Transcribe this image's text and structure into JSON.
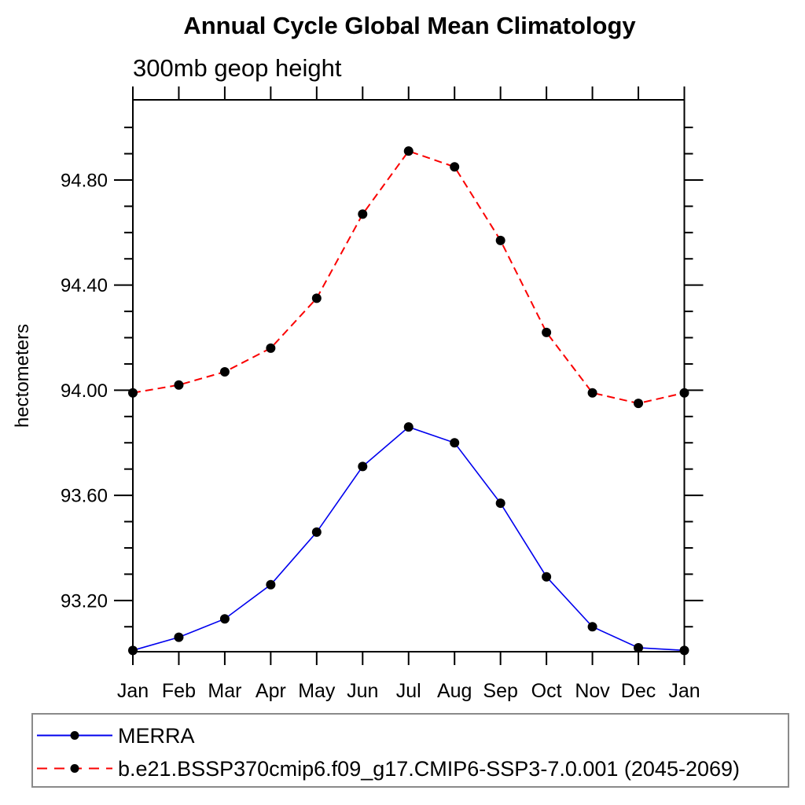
{
  "page": {
    "background": "#ffffff"
  },
  "chart_data": {
    "type": "line",
    "title": "Annual Cycle Global Mean Climatology",
    "subtitle": "300mb geop height",
    "ylabel": "hectometers",
    "categories": [
      "Jan",
      "Feb",
      "Mar",
      "Apr",
      "May",
      "Jun",
      "Jul",
      "Aug",
      "Sep",
      "Oct",
      "Nov",
      "Dec",
      "Jan"
    ],
    "ylim": [
      93.005,
      95.105
    ],
    "y_major_ticks": [
      93.2,
      93.6,
      94.0,
      94.4,
      94.8
    ],
    "y_major_tick_labels": [
      "93.20",
      "93.60",
      "94.00",
      "94.40",
      "94.80"
    ],
    "y_minor_tick_step": 0.1,
    "grid": false,
    "axis_color": "#000000",
    "marker_color": "#000000",
    "legend_position": "bottom-left",
    "legend_border_color": "#8a8a8a",
    "series": [
      {
        "name": "MERRA",
        "line_style": "solid",
        "line_color": "#0000ee",
        "marker": "circle",
        "values": [
          93.01,
          93.06,
          93.13,
          93.26,
          93.46,
          93.71,
          93.86,
          93.8,
          93.57,
          93.29,
          93.1,
          93.02,
          93.01
        ]
      },
      {
        "name": "b.e21.BSSP370cmip6.f09_g17.CMIP6-SSP3-7.0.001 (2045-2069)",
        "line_style": "dashed",
        "line_color": "#fa0000",
        "marker": "circle",
        "values": [
          93.99,
          94.02,
          94.07,
          94.16,
          94.35,
          94.67,
          94.91,
          94.85,
          94.57,
          94.22,
          93.99,
          93.95,
          93.99
        ]
      }
    ]
  }
}
